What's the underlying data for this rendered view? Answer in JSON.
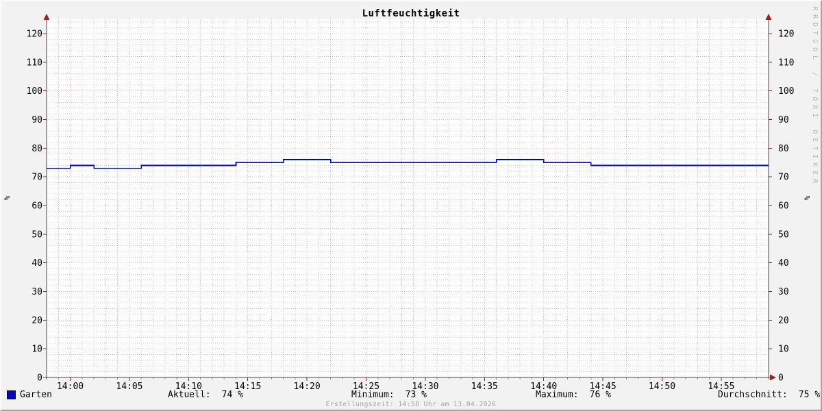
{
  "chart_data": {
    "type": "line",
    "title": "Luftfeuchtigkeit",
    "ylabel": "%",
    "x_start": "13:58",
    "x_end": "14:59",
    "x_major_ticks": [
      "14:00",
      "14:05",
      "14:10",
      "14:15",
      "14:20",
      "14:25",
      "14:30",
      "14:35",
      "14:40",
      "14:45",
      "14:50",
      "14:55"
    ],
    "x_minor_step_min": 1,
    "y_major_ticks": [
      0,
      10,
      20,
      30,
      40,
      50,
      60,
      70,
      80,
      90,
      100,
      110,
      120
    ],
    "y_minor_step": 2,
    "ylim": [
      0,
      125
    ],
    "grid": true,
    "legend_position": "bottom",
    "series": [
      {
        "name": "Garten",
        "color": "#0000cc",
        "steps": [
          {
            "time": "13:58",
            "value": 73
          },
          {
            "time": "14:00",
            "value": 74
          },
          {
            "time": "14:02",
            "value": 73
          },
          {
            "time": "14:06",
            "value": 74
          },
          {
            "time": "14:14",
            "value": 75
          },
          {
            "time": "14:18",
            "value": 76
          },
          {
            "time": "14:22",
            "value": 75
          },
          {
            "time": "14:36",
            "value": 76
          },
          {
            "time": "14:40",
            "value": 75
          },
          {
            "time": "14:44",
            "value": 74
          }
        ]
      }
    ],
    "stats": [
      {
        "label": "Aktuell:",
        "value": "74 %"
      },
      {
        "label": "Minimum:",
        "value": "73 %"
      },
      {
        "label": "Maximum:",
        "value": "76 %"
      },
      {
        "label": "Durchschnitt:",
        "value": "75 %"
      }
    ]
  },
  "footer": {
    "created": "Erstellungszeit: 14:58 Uhr am 13.04.2026",
    "watermark": "RRDTOOL / TOBI OETIKER"
  },
  "colors": {
    "background": "#f2f2f2",
    "canvas": "#ffffff",
    "axis": "#4a4a4a",
    "arrow": "#992222",
    "major_grid": "#ff0000",
    "minor_grid": "#6e6e6e",
    "line": "#0000cc",
    "text": "#000000"
  }
}
